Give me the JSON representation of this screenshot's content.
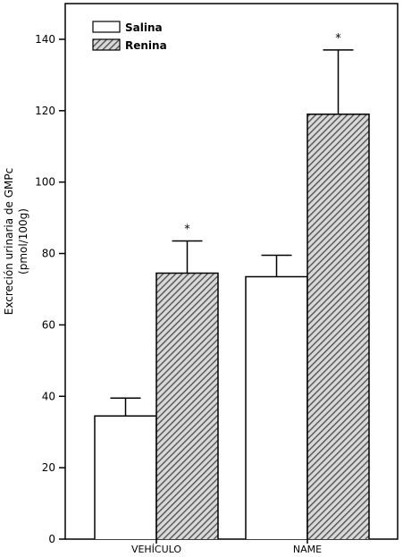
{
  "chart_data": {
    "type": "bar",
    "categories": [
      "VEHÍCULO",
      "NAME"
    ],
    "series": [
      {
        "name": "Salina",
        "values": [
          34.5,
          73.5
        ],
        "errors": [
          5,
          6
        ],
        "pattern": "plain"
      },
      {
        "name": "Renina",
        "values": [
          74.5,
          119
        ],
        "errors": [
          9,
          18
        ],
        "pattern": "hatched"
      }
    ],
    "significance": [
      {
        "category": "VEHÍCULO",
        "series": "Renina",
        "marker": "*"
      },
      {
        "category": "NAME",
        "series": "Renina",
        "marker": "*"
      }
    ],
    "ylabel_line1": "Excreción urinaria de GMPc",
    "ylabel_line2": "(pmol/100g)",
    "xlabel": "",
    "title": "",
    "ylim": [
      0,
      150
    ],
    "yticks": [
      0,
      20,
      40,
      60,
      80,
      100,
      120,
      140
    ],
    "grid": false,
    "legend": "top-left",
    "colors": {
      "plain": "#ffffff",
      "hatch": "#555555",
      "hatch_bg": "#d8d8d8",
      "stroke": "#000000"
    }
  }
}
